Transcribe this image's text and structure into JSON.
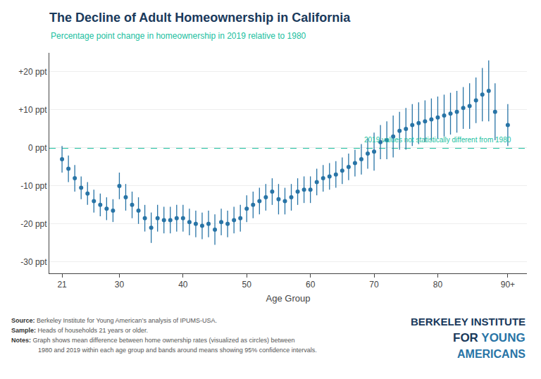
{
  "chart_data": {
    "type": "scatter",
    "title": "The Decline of Adult Homeownership in California",
    "subtitle": "Percentage point change in homeownership in 2019 relative to 1980",
    "xlabel": "Age Group",
    "color": "#2874a6",
    "marker": "circle",
    "grid": "y",
    "xlim": [
      19,
      94
    ],
    "xticks": [
      21,
      30,
      40,
      50,
      60,
      70,
      80,
      {
        "value": 91,
        "label": "90+"
      }
    ],
    "ylim": [
      -33,
      25
    ],
    "yticks": [
      {
        "value": 20,
        "label": "+20 ppt"
      },
      {
        "value": 10,
        "label": "+10 ppt"
      },
      {
        "value": 0,
        "label": "0 ppt"
      },
      {
        "value": -10,
        "label": "-10 ppt"
      },
      {
        "value": -20,
        "label": "-20 ppt"
      },
      {
        "value": -30,
        "label": "-30 ppt"
      }
    ],
    "x": [
      21,
      22,
      23,
      24,
      25,
      26,
      27,
      28,
      29,
      30,
      31,
      32,
      33,
      34,
      35,
      36,
      37,
      38,
      39,
      40,
      41,
      42,
      43,
      44,
      45,
      46,
      47,
      48,
      49,
      50,
      51,
      52,
      53,
      54,
      55,
      56,
      57,
      58,
      59,
      60,
      61,
      62,
      63,
      64,
      65,
      66,
      67,
      68,
      69,
      70,
      71,
      72,
      73,
      74,
      75,
      76,
      77,
      78,
      79,
      80,
      81,
      82,
      83,
      84,
      85,
      86,
      87,
      88,
      89,
      91
    ],
    "values": [
      -3.0,
      -5.5,
      -8.0,
      -10.5,
      -12.0,
      -14.0,
      -15.0,
      -16.0,
      -16.5,
      -10.0,
      -13.0,
      -15.0,
      -16.5,
      -18.5,
      -21.0,
      -18.5,
      -19.0,
      -19.0,
      -18.5,
      -18.5,
      -19.5,
      -20.0,
      -20.5,
      -20.0,
      -21.5,
      -19.5,
      -20.0,
      -19.0,
      -18.5,
      -16.0,
      -15.0,
      -14.0,
      -13.0,
      -11.5,
      -13.5,
      -14.0,
      -13.0,
      -11.5,
      -11.0,
      -11.0,
      -9.0,
      -8.0,
      -7.5,
      -7.0,
      -6.0,
      -5.0,
      -4.0,
      -3.0,
      -1.5,
      -1.0,
      1.5,
      2.0,
      3.0,
      4.5,
      5.0,
      6.0,
      6.5,
      7.0,
      7.5,
      8.0,
      8.5,
      9.0,
      9.5,
      10.5,
      11.0,
      12.5,
      14.0,
      15.0,
      9.5,
      6.0
    ],
    "error_minus": [
      3.5,
      3.5,
      3.5,
      3.0,
      3.0,
      3.0,
      3.0,
      3.0,
      3.0,
      3.5,
      3.5,
      3.5,
      3.5,
      3.5,
      4.0,
      3.5,
      3.5,
      3.5,
      3.5,
      3.5,
      3.5,
      3.5,
      3.5,
      3.5,
      4.0,
      3.5,
      3.5,
      3.5,
      3.5,
      3.5,
      3.5,
      3.5,
      3.5,
      3.5,
      4.0,
      3.5,
      3.5,
      3.5,
      3.5,
      3.5,
      3.5,
      3.5,
      3.5,
      3.5,
      3.5,
      3.5,
      3.5,
      4.0,
      4.0,
      5.0,
      4.5,
      5.0,
      5.5,
      5.0,
      5.5,
      5.5,
      5.5,
      5.5,
      5.5,
      5.5,
      5.5,
      5.5,
      5.5,
      5.5,
      6.0,
      6.0,
      7.0,
      8.0,
      7.5,
      5.5
    ],
    "error_plus": [
      3.5,
      3.5,
      3.5,
      3.0,
      3.0,
      3.0,
      3.0,
      3.0,
      3.0,
      3.5,
      3.5,
      3.5,
      3.5,
      3.5,
      4.0,
      3.5,
      3.5,
      3.5,
      3.5,
      3.5,
      3.5,
      3.5,
      3.5,
      3.5,
      4.0,
      3.5,
      3.5,
      3.5,
      3.5,
      3.5,
      3.5,
      3.5,
      3.5,
      3.5,
      4.0,
      3.5,
      3.5,
      3.5,
      3.5,
      3.5,
      3.5,
      3.5,
      3.5,
      3.5,
      3.5,
      3.5,
      3.5,
      4.0,
      4.0,
      5.0,
      4.5,
      5.0,
      5.5,
      5.0,
      5.5,
      5.5,
      5.5,
      5.5,
      5.5,
      5.5,
      5.5,
      5.5,
      5.5,
      5.5,
      6.0,
      6.0,
      7.0,
      8.0,
      7.5,
      5.5
    ],
    "hlines": [
      {
        "value": 0,
        "color": "#20c0a0",
        "line_style": "dashed"
      }
    ],
    "annotations": [
      {
        "text": "2019 values not statistically different from 1980",
        "x": 68.2,
        "y": 0.8,
        "color": "#20c0a0"
      }
    ],
    "title_color": "#1a3a5c",
    "subtitle_color": "#20c0a0",
    "source_color": "#555555",
    "source": [
      {
        "label": "Source:",
        "text": "Berkeley Institute for Young American’s analysis of IPUMS-USA."
      },
      {
        "label": "Sample:",
        "text": "Heads of households 21 years or older."
      },
      {
        "label": "Notes:",
        "text": "Graph shows mean difference between home ownership rates (visualized as circles) between"
      },
      {
        "text": "1980 and 2019 within each age group and bands around means showing 95% confidence intervals."
      }
    ],
    "logo": [
      [
        {
          "text": "BERKELEY INSTITUTE",
          "color": "#1a3a5c"
        }
      ],
      [
        {
          "text": "FOR",
          "color": "#1a3a5c"
        },
        {
          "text": "YOUNG",
          "color": "#2874a6"
        }
      ],
      [
        {
          "text": "AMERICANS",
          "color": "#2874a6"
        }
      ]
    ]
  }
}
